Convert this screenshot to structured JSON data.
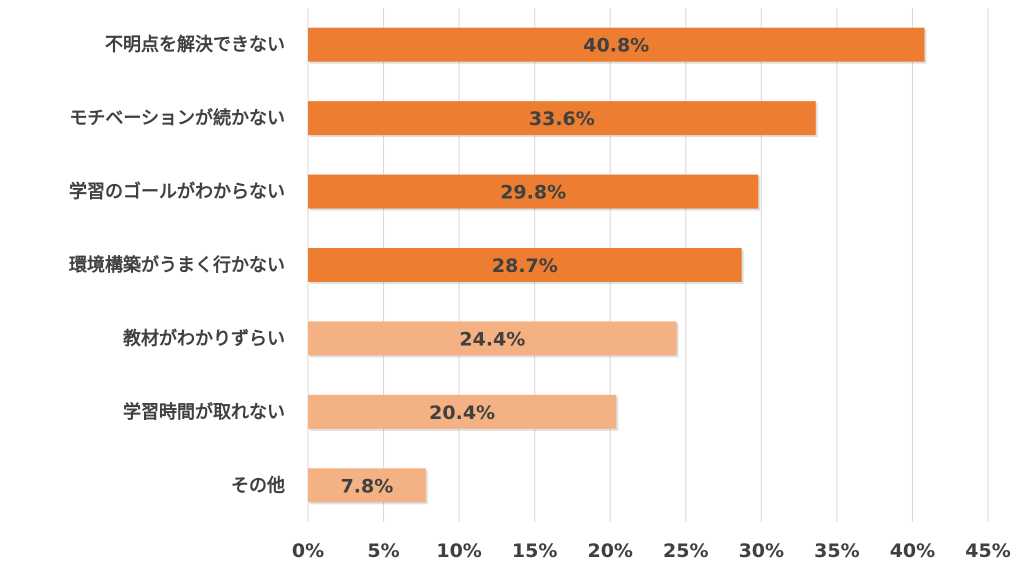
{
  "chart_data": {
    "type": "bar",
    "orientation": "horizontal",
    "title": "",
    "xlabel": "",
    "ylabel": "",
    "categories": [
      "不明点を解決できない",
      "モチベーションが続かない",
      "学習のゴールがわからない",
      "環境構築がうまく行かない",
      "教材がわかりずらい",
      "学習時間が取れない",
      "その他"
    ],
    "values": [
      40.8,
      33.6,
      29.8,
      28.7,
      24.4,
      20.4,
      7.8
    ],
    "data_labels": [
      "40.8%",
      "33.6%",
      "29.8%",
      "28.7%",
      "24.4%",
      "20.4%",
      "7.8%"
    ],
    "bar_colors": [
      "#ED7D31",
      "#ED7D31",
      "#ED7D31",
      "#ED7D31",
      "#F4B183",
      "#F4B183",
      "#F4B183"
    ],
    "xlim": [
      0,
      45
    ],
    "xticks": [
      "0%",
      "5%",
      "10%",
      "15%",
      "20%",
      "25%",
      "30%",
      "35%",
      "40%",
      "45%"
    ],
    "grid": true,
    "legend": "none"
  }
}
